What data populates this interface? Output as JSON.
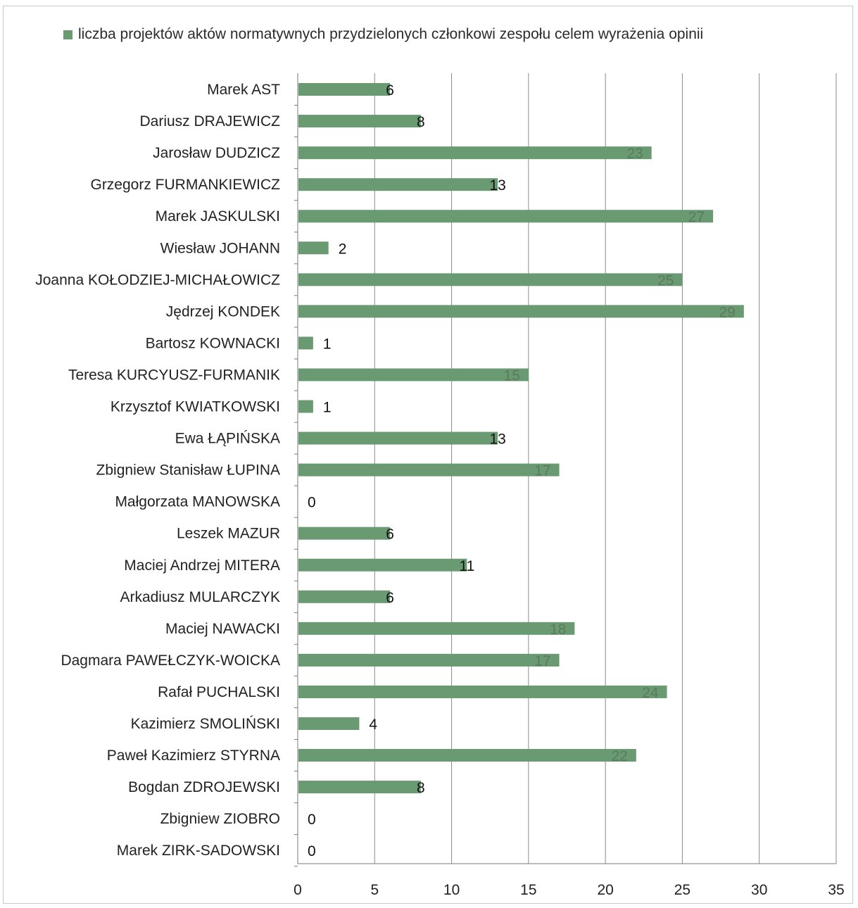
{
  "chart_data": {
    "type": "bar",
    "orientation": "horizontal",
    "legend": {
      "position": "top",
      "entries": [
        "liczba projektów aktów normatywnych przydzielonych członkowi zespołu celem wyrażenia opinii"
      ]
    },
    "series": [
      {
        "name": "liczba projektów aktów normatywnych przydzielonych członkowi zespołu celem wyrażenia opinii",
        "color": "#6a9a72",
        "values": [
          6,
          8,
          23,
          13,
          27,
          2,
          25,
          29,
          1,
          15,
          1,
          13,
          17,
          0,
          6,
          11,
          6,
          18,
          17,
          24,
          4,
          22,
          8,
          0,
          0
        ]
      }
    ],
    "categories": [
      "Marek AST",
      "Dariusz DRAJEWICZ",
      "Jarosław DUDZICZ",
      "Grzegorz FURMANKIEWICZ",
      "Marek JASKULSKI",
      "Wiesław JOHANN",
      "Joanna KOŁODZIEJ-MICHAŁOWICZ",
      "Jędrzej KONDEK",
      "Bartosz KOWNACKI",
      "Teresa KURCYUSZ-FURMANIK",
      "Krzysztof KWIATKOWSKI",
      "Ewa ŁĄPIŃSKA",
      "Zbigniew Stanisław ŁUPINA",
      "Małgorzata MANOWSKA",
      "Leszek MAZUR",
      "Maciej Andrzej MITERA",
      "Arkadiusz MULARCZYK",
      "Maciej NAWACKI",
      "Dagmara PAWEŁCZYK-WOICKA",
      "Rafał PUCHALSKI",
      "Kazimierz SMOLIŃSKI",
      "Paweł Kazimierz STYRNA",
      "Bogdan ZDROJEWSKI",
      "Zbigniew ZIOBRO",
      "Marek ZIRK-SADOWSKI"
    ],
    "xlim": [
      0,
      35
    ],
    "xticks": [
      0,
      5,
      10,
      15,
      20,
      25,
      30,
      35
    ],
    "grid": "vertical",
    "data_labels": true
  }
}
